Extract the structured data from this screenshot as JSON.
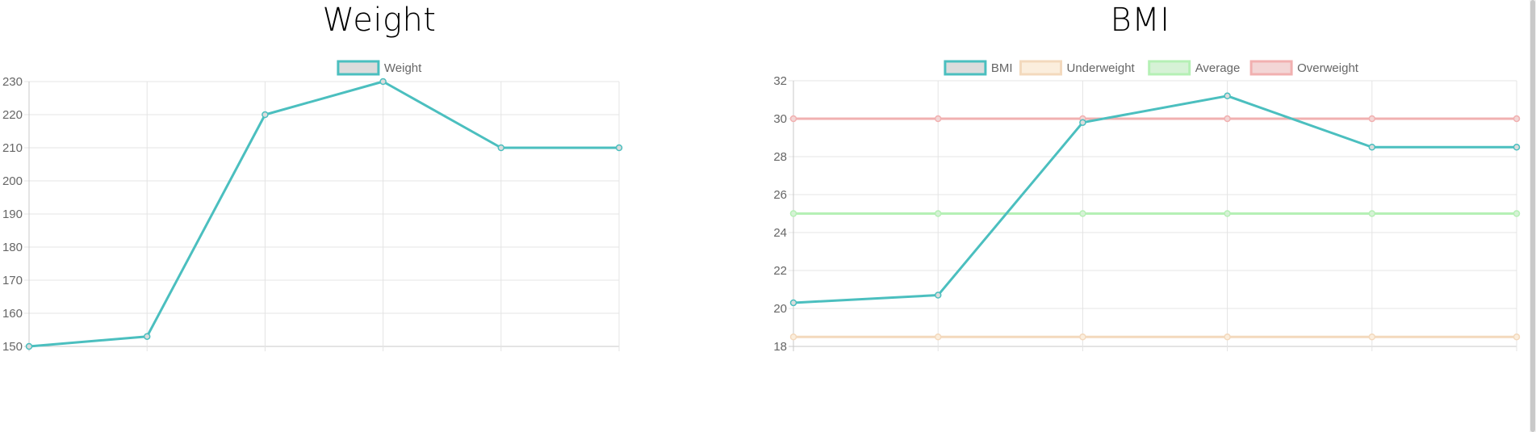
{
  "chart_data": [
    {
      "type": "line",
      "title": "Weight",
      "xlabel": "",
      "ylabel": "",
      "categories": [
        "",
        "",
        "",
        "",
        "",
        ""
      ],
      "ylim": [
        150,
        230
      ],
      "yticks": [
        150,
        160,
        170,
        180,
        190,
        200,
        210,
        220,
        230
      ],
      "grid": true,
      "legend_position": "top-center",
      "series": [
        {
          "name": "Weight",
          "values": [
            150,
            153,
            220,
            230,
            210,
            210
          ],
          "color": "#4bbfbf",
          "fill": "#dcdcdc",
          "opacity": 1
        }
      ]
    },
    {
      "type": "line",
      "title": "BMI",
      "xlabel": "",
      "ylabel": "",
      "categories": [
        "",
        "",
        "",
        "",
        "",
        ""
      ],
      "ylim": [
        18,
        32
      ],
      "yticks": [
        18,
        20,
        22,
        24,
        26,
        28,
        30,
        32
      ],
      "grid": true,
      "legend_position": "top-center",
      "series": [
        {
          "name": "BMI",
          "values": [
            20.3,
            20.7,
            29.8,
            31.2,
            28.5,
            28.5
          ],
          "color": "#4bbfbf",
          "fill": "#dcdcdc",
          "opacity": 1
        },
        {
          "name": "Underweight",
          "values": [
            18.5,
            18.5,
            18.5,
            18.5,
            18.5,
            18.5
          ],
          "color": "#f3d9bd",
          "fill": "#fbeedd",
          "opacity": 1
        },
        {
          "name": "Average",
          "values": [
            25,
            25,
            25,
            25,
            25,
            25
          ],
          "color": "#b5f0b5",
          "fill": "#d6f2d6",
          "opacity": 1
        },
        {
          "name": "Overweight",
          "values": [
            30,
            30,
            30,
            30,
            30,
            30
          ],
          "color": "#f1b0b0",
          "fill": "#f3d6d6",
          "opacity": 1
        }
      ]
    }
  ]
}
